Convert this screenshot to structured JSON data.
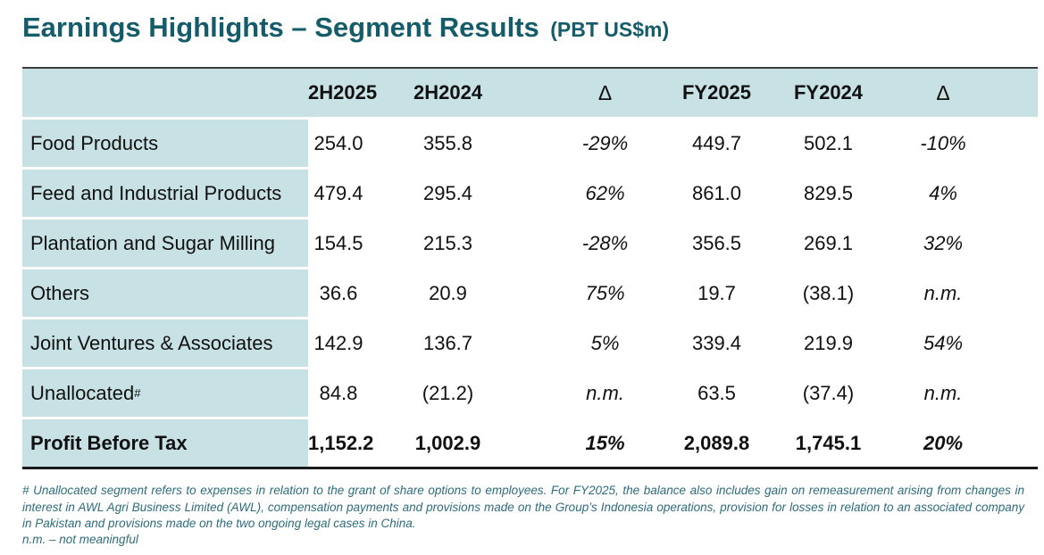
{
  "header": {
    "title": "Earnings Highlights – Segment Results",
    "unit": "(PBT US$m)"
  },
  "table": {
    "columns": [
      "",
      "2H2025",
      "2H2024",
      "Δ",
      "FY2025",
      "FY2024",
      "Δ"
    ],
    "rows": [
      {
        "label": "Food Products",
        "values": [
          "254.0",
          "355.8",
          "-29%",
          "449.7",
          "502.1",
          "-10%"
        ]
      },
      {
        "label": "Feed and Industrial Products",
        "values": [
          "479.4",
          "295.4",
          "62%",
          "861.0",
          "829.5",
          "4%"
        ]
      },
      {
        "label": "Plantation and Sugar Milling",
        "values": [
          "154.5",
          "215.3",
          "-28%",
          "356.5",
          "269.1",
          "32%"
        ]
      },
      {
        "label": "Others",
        "values": [
          "36.6",
          "20.9",
          "75%",
          "19.7",
          "(38.1)",
          "n.m."
        ]
      },
      {
        "label": "Joint Ventures & Associates",
        "values": [
          "142.9",
          "136.7",
          "5%",
          "339.4",
          "219.9",
          "54%"
        ]
      },
      {
        "label": "Unallocated",
        "note_marker": "#",
        "values": [
          "84.8",
          "(21.2)",
          "n.m.",
          "63.5",
          "(37.4)",
          "n.m."
        ]
      },
      {
        "label": "Profit Before Tax",
        "values": [
          "1,152.2",
          "1,002.9",
          "15%",
          "2,089.8",
          "1,745.1",
          "20%"
        ]
      }
    ]
  },
  "footnotes": {
    "unallocated": "# Unallocated segment refers to expenses in relation to the grant of share options to employees. For FY2025, the balance also includes gain on remeasurement arising from changes in interest in AWL Agri Business Limited (AWL), compensation payments and provisions made on the Group’s Indonesia operations, provision for losses in relation to an associated company in Pakistan and provisions made on the two ongoing legal cases in China.",
    "nm": "n.m. – not meaningful"
  },
  "colors": {
    "title_teal": "#155c6b",
    "table_header_bg": "#c7e1e4",
    "footnote_teal": "#2d6c7e",
    "table_top_border": "#3d3d3d",
    "table_bottom_border": "#1a1a1a",
    "body_text": "#111111"
  }
}
